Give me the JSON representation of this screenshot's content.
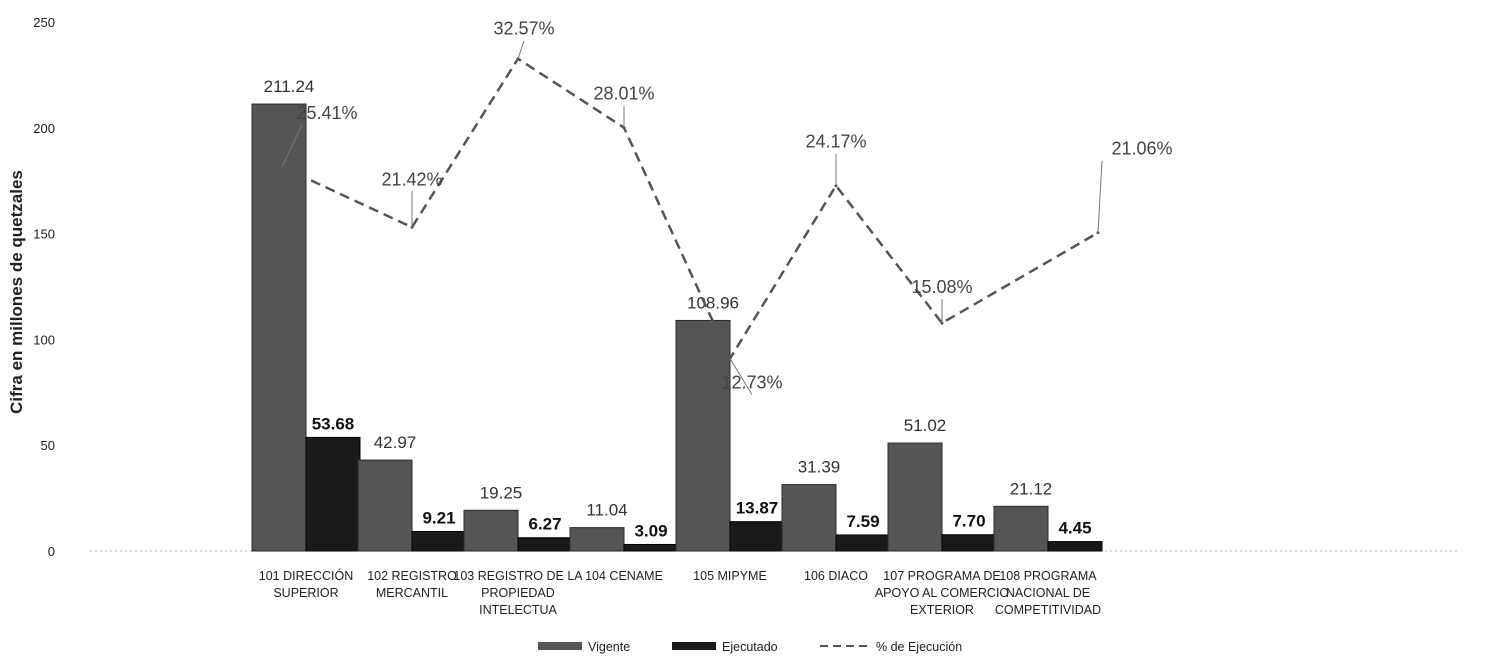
{
  "chart_data": {
    "type": "bar",
    "ylabel": "Cifra en millones de quetzales",
    "ylim": [
      0,
      250
    ],
    "yticks": [
      "0",
      "50",
      "100",
      "150",
      "200",
      "250"
    ],
    "grid": false,
    "legend_position": "bottom",
    "categories": [
      [
        "101 DIRECCIÓN",
        "SUPERIOR"
      ],
      [
        "102 REGISTRO",
        "MERCANTIL"
      ],
      [
        "103 REGISTRO DE LA",
        "PROPIEDAD",
        "INTELECTUA"
      ],
      [
        "104 CENAME"
      ],
      [
        "105 MIPYME"
      ],
      [
        "106 DIACO"
      ],
      [
        "107 PROGRAMA DE",
        "APOYO AL COMERCIO",
        "EXTERIOR"
      ],
      [
        "108 PROGRAMA",
        "NACIONAL DE",
        "COMPETITIVIDAD"
      ]
    ],
    "series": [
      {
        "name": "Vigente",
        "kind": "bar",
        "color": "#555555",
        "values": [
          211.24,
          42.97,
          19.25,
          11.04,
          108.96,
          31.39,
          51.02,
          21.12
        ],
        "labels": [
          "211.24",
          "42.97",
          "19.25",
          "11.04",
          "108.96",
          "31.39",
          "51.02",
          "21.12"
        ]
      },
      {
        "name": "Ejecutado",
        "kind": "bar",
        "color": "#1a1a1a",
        "values": [
          53.68,
          9.21,
          6.27,
          3.09,
          13.87,
          7.59,
          7.7,
          4.45
        ],
        "labels": [
          "53.68",
          "9.21",
          "6.27",
          "3.09",
          "13.87",
          "7.59",
          "7.70",
          "4.45"
        ]
      },
      {
        "name": "% de Ejecución",
        "kind": "line",
        "style": "dashed",
        "color": "#555555",
        "values": [
          25.41,
          21.42,
          32.57,
          28.01,
          12.73,
          24.17,
          15.08,
          21.06
        ],
        "labels": [
          "25.41%",
          "21.42%",
          "32.57%",
          "28.01%",
          "12.73%",
          "24.17%",
          "15.08%",
          "21.06%"
        ]
      }
    ]
  }
}
